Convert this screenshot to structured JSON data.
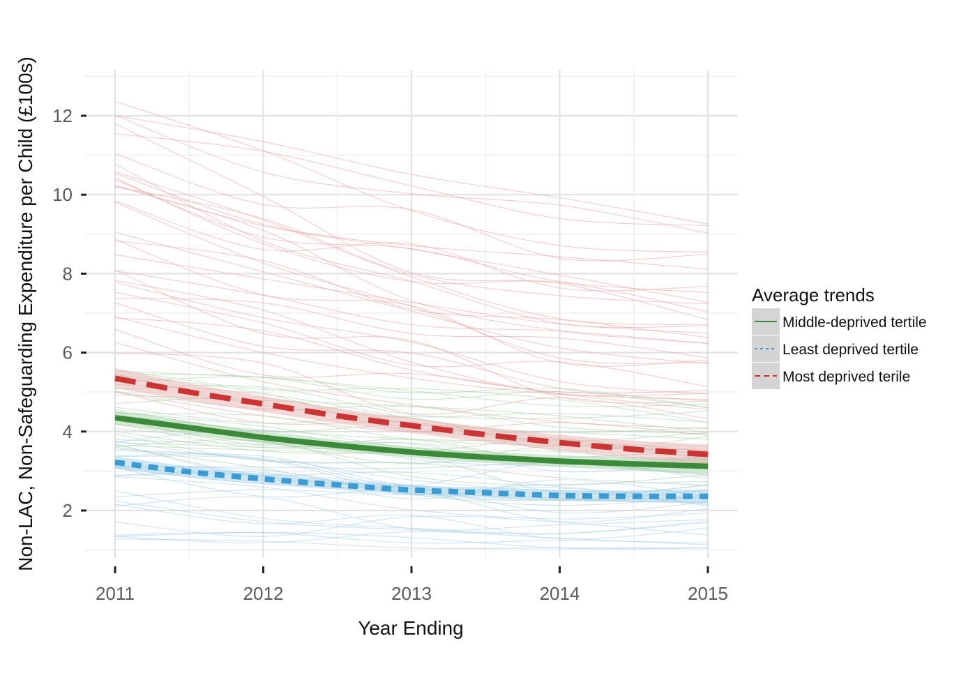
{
  "chart_data": {
    "type": "line",
    "xlabel": "Year Ending",
    "ylabel": "Non-LAC, Non-Safeguarding Expenditure per Child (£100s)",
    "xlim": [
      2011,
      2015
    ],
    "ylim": [
      0.6,
      13.2
    ],
    "x_ticks": [
      2011,
      2012,
      2013,
      2014,
      2015
    ],
    "y_ticks": [
      2,
      4,
      6,
      8,
      10,
      12
    ],
    "grid": true,
    "legend": {
      "title": "Average trends",
      "position": "right"
    },
    "x": [
      2011,
      2011.5,
      2012,
      2012.5,
      2013,
      2013.5,
      2014,
      2014.5,
      2015
    ],
    "series": [
      {
        "name": "Middle-deprived tertile",
        "color": "#3a8a3a",
        "dash": "solid",
        "values": [
          4.35,
          4.1,
          3.85,
          3.65,
          3.48,
          3.35,
          3.25,
          3.18,
          3.12
        ],
        "band": [
          0.18,
          0.16,
          0.15,
          0.14,
          0.14,
          0.14,
          0.15,
          0.17,
          0.2
        ]
      },
      {
        "name": "Least deprived tertile",
        "color": "#3a9bd5",
        "dash": "dotted",
        "values": [
          3.22,
          2.98,
          2.8,
          2.65,
          2.52,
          2.45,
          2.38,
          2.36,
          2.36
        ],
        "band": [
          0.15,
          0.14,
          0.13,
          0.12,
          0.12,
          0.12,
          0.13,
          0.15,
          0.18
        ]
      },
      {
        "name": "Most deprived terile",
        "color": "#cc3333",
        "dash": "dashed",
        "values": [
          5.35,
          5.0,
          4.7,
          4.4,
          4.15,
          3.92,
          3.72,
          3.55,
          3.42
        ],
        "band": [
          0.25,
          0.22,
          0.2,
          0.19,
          0.19,
          0.19,
          0.2,
          0.22,
          0.25
        ]
      }
    ]
  }
}
